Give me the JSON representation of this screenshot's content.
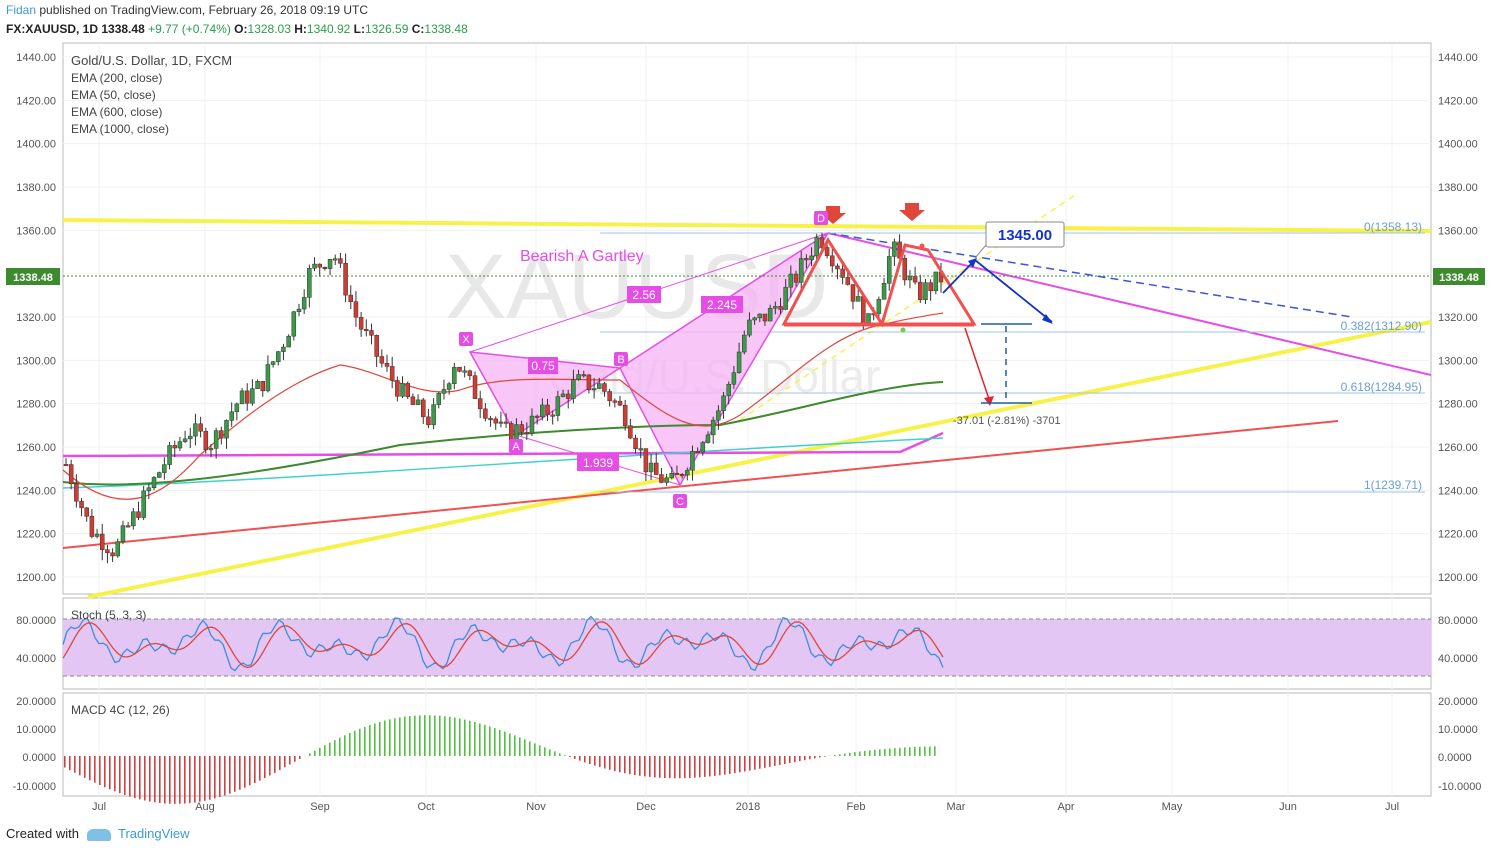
{
  "header": {
    "author": "Fidan",
    "published": "published on TradingView.com, February 26, 2018 09:19 UTC",
    "symbol": "FX:XAUUSD, 1D",
    "last": "1338.48",
    "change": "+9.77 (+0.74%)",
    "open_label": "O:",
    "open": "1328.03",
    "high_label": "H:",
    "high": "1340.92",
    "low_label": "L:",
    "low": "1326.59",
    "close_label": "C:",
    "close": "1338.48"
  },
  "legend": {
    "title": "Gold/U.S. Dollar, 1D, FXCM",
    "items": [
      "EMA (200, close)",
      "EMA (50, close)",
      "EMA (600, close)",
      "EMA (1000, close)"
    ]
  },
  "watermark": {
    "symbol": "XAUUSD",
    "name": "Gold/U.S. Dollar"
  },
  "annotations": {
    "pattern_title": "Bearish A Gartley",
    "points": [
      "X",
      "A",
      "B",
      "C",
      "D"
    ],
    "ratios": [
      "0.75",
      "2.56",
      "2.245",
      "1.939"
    ],
    "target_box": "1345.00",
    "measure_text": "-37.01 (-2.81%) -3701",
    "fib_levels": [
      "0(1358.13)",
      "0.382(1312.90)",
      "0.618(1284.95)",
      "1(1239.71)"
    ]
  },
  "price_axis": {
    "ticks": [
      "1440.00",
      "1420.00",
      "1400.00",
      "1380.00",
      "1360.00",
      "1340.00",
      "1320.00",
      "1300.00",
      "1280.00",
      "1260.00",
      "1240.00",
      "1220.00",
      "1200.00"
    ],
    "current_label": "1338.48"
  },
  "stoch": {
    "title": "Stoch (5, 3, 3)",
    "ticks": [
      "80.0000",
      "40.0000"
    ],
    "k_color": "#3a8fd9",
    "d_color": "#e0463a",
    "band_color": "#e4c6f5"
  },
  "macd": {
    "title": "MACD 4C (12, 26)",
    "ticks": [
      "20.0000",
      "10.0000",
      "0.0000",
      "-10.0000"
    ]
  },
  "time_axis": {
    "labels": [
      "Jul",
      "Aug",
      "Sep",
      "Oct",
      "Nov",
      "Dec",
      "2018",
      "Feb",
      "Mar",
      "Apr",
      "May",
      "Jun",
      "Jul"
    ]
  },
  "colors": {
    "up": "#3a9a48",
    "down": "#d23b32",
    "gartley": "#e64de6",
    "trend_yellow": "#f7f24a",
    "trend_red": "#f05050"
  },
  "footer": {
    "created": "Created with",
    "brand": "TradingView"
  },
  "chart_data": {
    "type": "candlestick",
    "title": "Gold/U.S. Dollar, 1D, FXCM",
    "ylim": [
      1190,
      1448
    ],
    "close_series": [
      {
        "date": "Jun 26",
        "v": 1252
      },
      {
        "date": "Jul 5",
        "v": 1222
      },
      {
        "date": "Jul 10",
        "v": 1212
      },
      {
        "date": "Jul 17",
        "v": 1232
      },
      {
        "date": "Jul 24",
        "v": 1252
      },
      {
        "date": "Jul 31",
        "v": 1268
      },
      {
        "date": "Aug 7",
        "v": 1262
      },
      {
        "date": "Aug 14",
        "v": 1280
      },
      {
        "date": "Aug 21",
        "v": 1288
      },
      {
        "date": "Aug 28",
        "v": 1310
      },
      {
        "date": "Sep 5",
        "v": 1340
      },
      {
        "date": "Sep 8",
        "v": 1350
      },
      {
        "date": "Sep 15",
        "v": 1318
      },
      {
        "date": "Sep 22",
        "v": 1298
      },
      {
        "date": "Sep 29",
        "v": 1282
      },
      {
        "date": "Oct 6",
        "v": 1272
      },
      {
        "date": "Oct 13",
        "v": 1300
      },
      {
        "date": "Oct 20",
        "v": 1282
      },
      {
        "date": "Oct 27",
        "v": 1266
      },
      {
        "date": "Nov 3",
        "v": 1270
      },
      {
        "date": "Nov 10",
        "v": 1278
      },
      {
        "date": "Nov 17",
        "v": 1290
      },
      {
        "date": "Nov 24",
        "v": 1288
      },
      {
        "date": "Dec 1",
        "v": 1275
      },
      {
        "date": "Dec 8",
        "v": 1248
      },
      {
        "date": "Dec 12",
        "v": 1243
      },
      {
        "date": "Dec 19",
        "v": 1262
      },
      {
        "date": "Dec 26",
        "v": 1280
      },
      {
        "date": "Jan 2",
        "v": 1315
      },
      {
        "date": "Jan 9",
        "v": 1322
      },
      {
        "date": "Jan 16",
        "v": 1338
      },
      {
        "date": "Jan 25",
        "v": 1358
      },
      {
        "date": "Feb 1",
        "v": 1340
      },
      {
        "date": "Feb 8",
        "v": 1316
      },
      {
        "date": "Feb 15",
        "v": 1352
      },
      {
        "date": "Feb 20",
        "v": 1330
      },
      {
        "date": "Feb 26",
        "v": 1338
      }
    ],
    "annotations_prices": {
      "resistance": 1362,
      "target": 1281,
      "box": 1345
    }
  }
}
